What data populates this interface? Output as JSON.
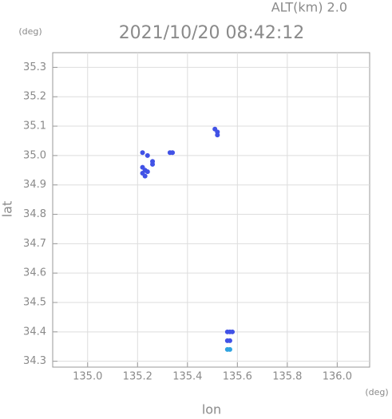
{
  "chart_data": {
    "type": "scatter",
    "title": "2021/10/20 08:42:12",
    "subtitle": "ALT(km) 2.0",
    "x_label": "lon",
    "y_label": "lat",
    "x_unit": "(deg)",
    "y_unit": "(deg)",
    "xlim": [
      134.86,
      136.13
    ],
    "ylim": [
      34.28,
      35.35
    ],
    "xticks": [
      {
        "value": 135,
        "label": "135.0"
      },
      135.2,
      135.4,
      135.6,
      135.8,
      {
        "value": 136,
        "label": "136.0"
      }
    ],
    "yticks": [
      {
        "value": 34.3,
        "label": "34.3"
      },
      34.4,
      34.5,
      34.6,
      34.7,
      34.8,
      34.9,
      {
        "value": 35,
        "label": "35.0"
      },
      35.1,
      35.2,
      35.3
    ],
    "grid": true,
    "series": [
      {
        "color": "#4152e6",
        "x": [
          135.22,
          135.23,
          135.22,
          135.23,
          135.24,
          135.22,
          135.24,
          135.26,
          135.26,
          135.33,
          135.34,
          135.51,
          135.52,
          135.52,
          135.56,
          135.57,
          135.58,
          135.56,
          135.57
        ],
        "values": [
          34.96,
          34.95,
          34.94,
          34.93,
          34.945,
          35.01,
          35.0,
          34.98,
          34.97,
          35.01,
          35.01,
          35.09,
          35.08,
          35.07,
          34.4,
          34.4,
          34.4,
          34.37,
          34.37
        ]
      },
      {
        "color": "#2fa3e0",
        "x": [
          135.56,
          135.57
        ],
        "values": [
          34.34,
          34.34
        ]
      }
    ]
  }
}
